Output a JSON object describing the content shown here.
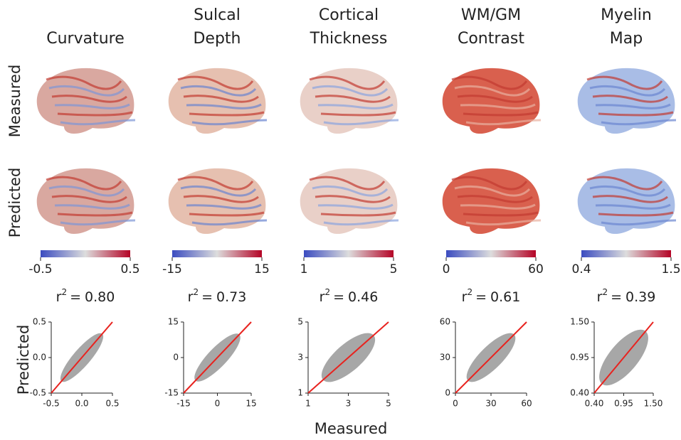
{
  "columns": [
    {
      "title": [
        "Curvature"
      ],
      "colorbar": [
        -0.5,
        0.5
      ],
      "r2": {
        "value": 0.8,
        "label": "0.80"
      },
      "lim": [
        -0.5,
        0.5
      ],
      "ticks": [
        -0.5,
        {
          "value": 0,
          "label": "0.0"
        },
        0.5
      ]
    },
    {
      "title": [
        "Sulcal",
        "Depth"
      ],
      "colorbar": [
        -15,
        15
      ],
      "r2": {
        "value": 0.73,
        "label": "0.73"
      },
      "lim": [
        -15,
        15
      ],
      "ticks": [
        -15,
        0,
        15
      ]
    },
    {
      "title": [
        "Cortical",
        "Thickness"
      ],
      "colorbar": [
        1,
        5
      ],
      "r2": {
        "value": 0.46,
        "label": "0.46"
      },
      "lim": [
        1,
        5
      ],
      "ticks": [
        1,
        3,
        5
      ]
    },
    {
      "title": [
        "WM/GM",
        "Contrast"
      ],
      "colorbar": [
        0,
        60
      ],
      "r2": {
        "value": 0.61,
        "label": "0.61"
      },
      "lim": [
        0,
        60
      ],
      "ticks": [
        0,
        30,
        60
      ]
    },
    {
      "title": [
        "Myelin",
        "Map"
      ],
      "colorbar": [
        0.4,
        1.5
      ],
      "r2": {
        "value": 0.39,
        "label": "0.39"
      },
      "lim": [
        0.4,
        1.5
      ],
      "ticks": [
        {
          "value": 0.4,
          "label": "0.40"
        },
        0.95,
        {
          "value": 1.5,
          "label": "1.50"
        }
      ]
    }
  ],
  "row_labels": [
    "Measured",
    "Predicted"
  ],
  "stat_label": {
    "base": "r",
    "sup": "2",
    "eq": "="
  },
  "x_label": "Measured",
  "y_label": "Predicted",
  "colormap": [
    "#3b4cc0",
    "#dddddd",
    "#b40426"
  ],
  "scatter_color": "#8a8a8a",
  "line_color": "#e8231f"
}
